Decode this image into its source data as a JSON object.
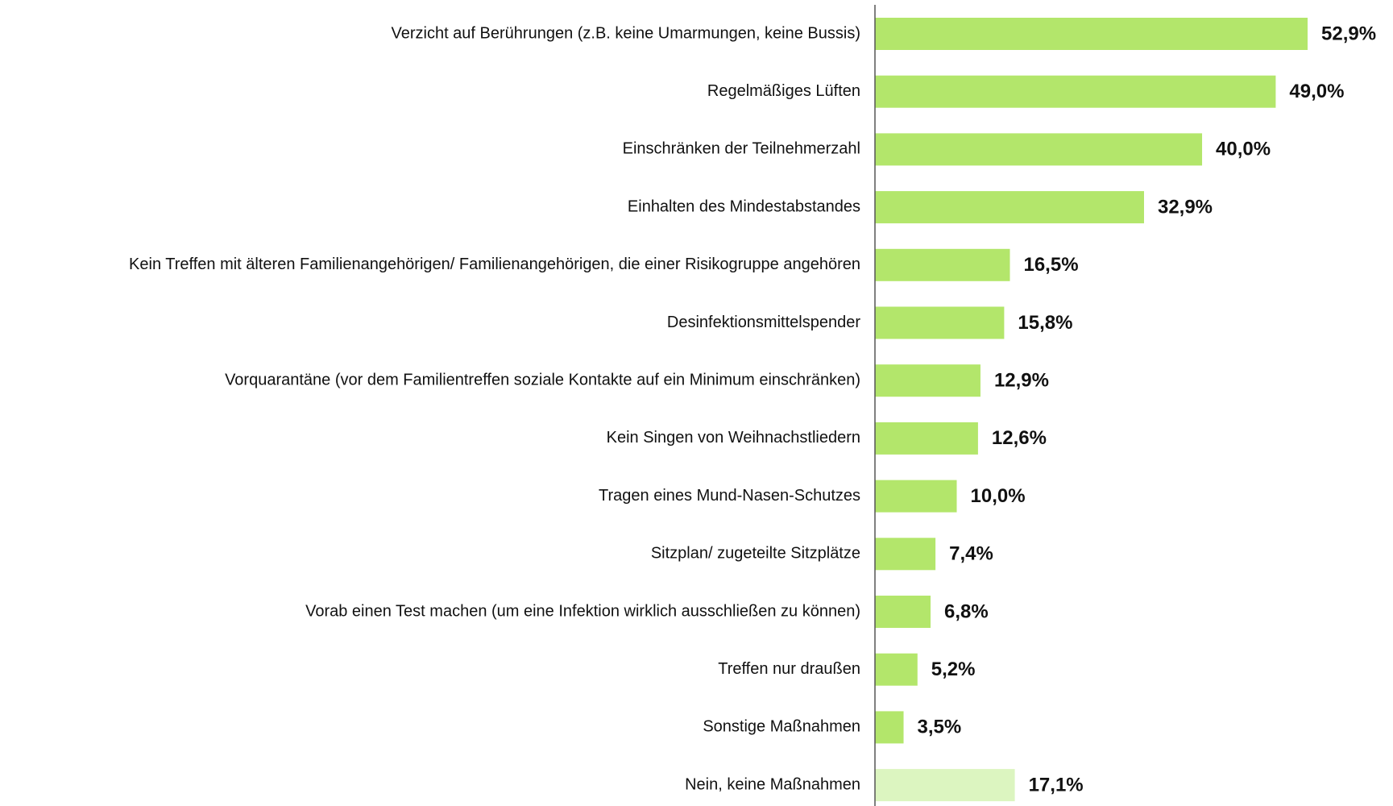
{
  "chart_data": {
    "type": "bar",
    "orientation": "horizontal",
    "categories": [
      "Verzicht auf Berührungen (z.B. keine Umarmungen, keine Bussis)",
      "Regelmäßiges Lüften",
      "Einschränken der Teilnehmerzahl",
      "Einhalten des Mindestabstandes",
      "Kein Treffen mit älteren Familienangehörigen/ Familienangehörigen, die einer Risikogruppe angehören",
      "Desinfektionsmittelspender",
      "Vorquarantäne (vor dem Familientreffen soziale Kontakte auf ein Minimum einschränken)",
      "Kein Singen von Weihnachstliedern",
      "Tragen eines Mund-Nasen-Schutzes",
      "Sitzplan/ zugeteilte Sitzplätze",
      "Vorab einen Test machen (um eine Infektion wirklich ausschließen zu können)",
      "Treffen nur draußen",
      "Sonstige Maßnahmen",
      "Nein, keine Maßnahmen"
    ],
    "values": [
      52.9,
      49.0,
      40.0,
      32.9,
      16.5,
      15.8,
      12.9,
      12.6,
      10.0,
      7.4,
      6.8,
      5.2,
      3.5,
      17.1
    ],
    "value_labels": [
      "52,9%",
      "49,0%",
      "40,0%",
      "32,9%",
      "16,5%",
      "15,8%",
      "12,9%",
      "12,6%",
      "10,0%",
      "7,4%",
      "6,8%",
      "5,2%",
      "3,5%",
      "17,1%"
    ],
    "colors": [
      "#b3e66b",
      "#b3e66b",
      "#b3e66b",
      "#b3e66b",
      "#b3e66b",
      "#b3e66b",
      "#b3e66b",
      "#b3e66b",
      "#b3e66b",
      "#b3e66b",
      "#b3e66b",
      "#b3e66b",
      "#b3e66b",
      "#dcf5c0"
    ]
  }
}
